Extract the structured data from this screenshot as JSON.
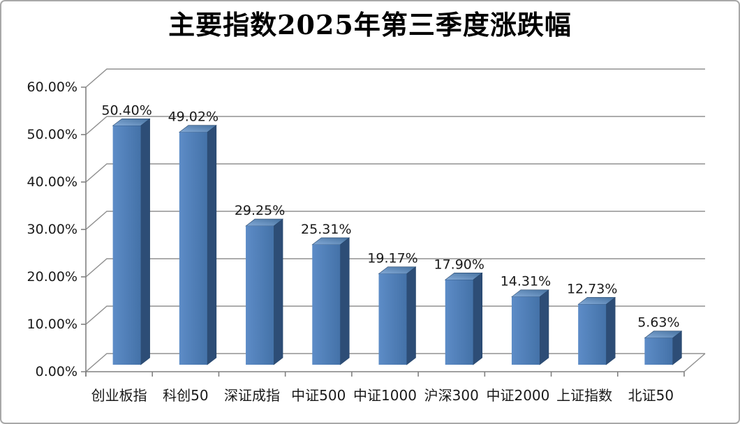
{
  "frame": {
    "background": "#ffffff",
    "border_color": "#a8a8a8"
  },
  "chart_data": {
    "type": "bar",
    "style": "3d-column",
    "title": "主要指数2025年第三季度涨跌幅",
    "categories": [
      "创业板指",
      "科创50",
      "深证成指",
      "中证500",
      "中证1000",
      "沪深300",
      "中证2000",
      "上证指数",
      "北证50"
    ],
    "values": [
      50.4,
      49.02,
      29.25,
      25.31,
      19.17,
      17.9,
      14.31,
      12.73,
      5.63
    ],
    "data_labels": [
      "50.40%",
      "49.02%",
      "29.25%",
      "25.31%",
      "19.17%",
      "17.90%",
      "14.31%",
      "12.73%",
      "5.63%"
    ],
    "xlabel": "",
    "ylabel": "",
    "ylim": [
      0,
      60
    ],
    "ytick_step": 10,
    "yticks": [
      "0.00%",
      "10.00%",
      "20.00%",
      "30.00%",
      "40.00%",
      "50.00%",
      "60.00%"
    ],
    "grid": true,
    "legend": "none",
    "colors": {
      "bar_front_light": "#5d8cc7",
      "bar_front_dark": "#4472a8",
      "bar_side": "#2d4d76",
      "bar_top_light": "#85abd8",
      "bar_top_dark": "#45719f",
      "bar_edge": "#26466b",
      "gridline": "#909090",
      "axis": "#808080",
      "label_text": "#1a1a1a"
    }
  }
}
